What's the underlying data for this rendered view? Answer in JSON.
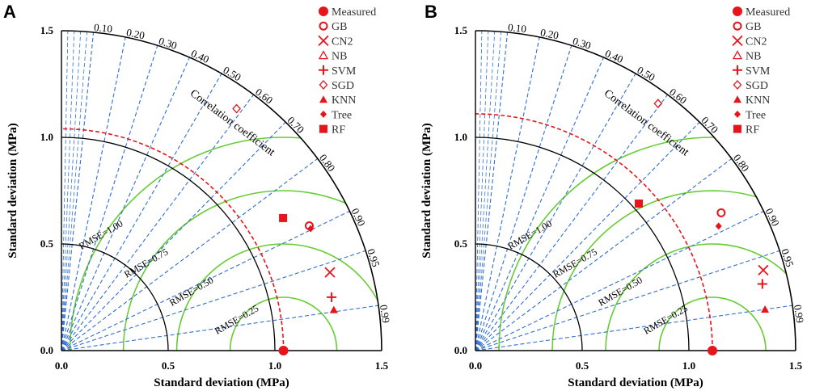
{
  "chart_data": [
    {
      "type": "taylor",
      "panel_label": "A",
      "xlabel": "Standard deviation (MPa)",
      "ylabel": "Standard deviation (MPa)",
      "axis_range": [
        0,
        1.5
      ],
      "axis_ticks": [
        "0.0",
        "0.5",
        "1.0",
        "1.5"
      ],
      "std_arcs": [
        0.5,
        1.0,
        1.5
      ],
      "correlation_title": "Correlation coefficient",
      "correlation_ticks": [
        "0.10",
        "0.20",
        "0.30",
        "0.40",
        "0.50",
        "0.60",
        "0.70",
        "0.80",
        "0.90",
        "0.95",
        "0.99"
      ],
      "rmse_labels": [
        "RMSE=0.25",
        "RMSE=0.50",
        "RMSE=0.75",
        "RMSE=1.00"
      ],
      "reference_std": 1.04,
      "models": [
        {
          "name": "Measured",
          "symbol": "circle-filled",
          "std": 1.04,
          "corr": 1.0
        },
        {
          "name": "GB",
          "symbol": "circle-open",
          "std": 1.3,
          "corr": 0.893
        },
        {
          "name": "CN2",
          "symbol": "x",
          "std": 1.31,
          "corr": 0.96
        },
        {
          "name": "NB",
          "symbol": "triangle-open",
          "std": 1.4,
          "corr": 0.586
        },
        {
          "name": "SVM",
          "symbol": "plus",
          "std": 1.29,
          "corr": 0.981
        },
        {
          "name": "SGD",
          "symbol": "diamond-open",
          "std": 1.4,
          "corr": 0.586
        },
        {
          "name": "KNN",
          "symbol": "triangle-filled",
          "std": 1.29,
          "corr": 0.989
        },
        {
          "name": "Tree",
          "symbol": "diamond-filled",
          "std": 1.3,
          "corr": 0.898
        },
        {
          "name": "RF",
          "symbol": "square-filled",
          "std": 1.21,
          "corr": 0.858
        }
      ]
    },
    {
      "type": "taylor",
      "panel_label": "B",
      "xlabel": "Standard deviation (MPa)",
      "ylabel": "Standard deviation (MPa)",
      "axis_range": [
        0,
        1.5
      ],
      "axis_ticks": [
        "0.0",
        "0.5",
        "1.0",
        "1.5"
      ],
      "std_arcs": [
        0.5,
        1.0,
        1.5
      ],
      "correlation_title": "Correlation coefficient",
      "correlation_ticks": [
        "0.10",
        "0.20",
        "0.30",
        "0.40",
        "0.50",
        "0.60",
        "0.70",
        "0.80",
        "0.90",
        "0.95",
        "0.99"
      ],
      "rmse_labels": [
        "RMSE=0.25",
        "RMSE=0.50",
        "RMSE=0.75",
        "RMSE=1.00"
      ],
      "reference_std": 1.11,
      "models": [
        {
          "name": "Measured",
          "symbol": "circle-filled",
          "std": 1.11,
          "corr": 1.0
        },
        {
          "name": "GB",
          "symbol": "circle-open",
          "std": 1.32,
          "corr": 0.872
        },
        {
          "name": "CN2",
          "symbol": "x",
          "std": 1.4,
          "corr": 0.963
        },
        {
          "name": "NB",
          "symbol": "triangle-open",
          "std": 1.44,
          "corr": 0.594
        },
        {
          "name": "SVM",
          "symbol": "plus",
          "std": 1.38,
          "corr": 0.974
        },
        {
          "name": "SGD",
          "symbol": "diamond-open",
          "std": 1.44,
          "corr": 0.594
        },
        {
          "name": "KNN",
          "symbol": "triangle-filled",
          "std": 1.37,
          "corr": 0.99
        },
        {
          "name": "Tree",
          "symbol": "diamond-filled",
          "std": 1.28,
          "corr": 0.89
        },
        {
          "name": "RF",
          "symbol": "square-filled",
          "std": 1.03,
          "corr": 0.743
        }
      ]
    }
  ],
  "colors": {
    "marker": "#e8141b",
    "corr_lines": "#2f6fd6",
    "rmse_arcs": "#66cc33",
    "ref_arc": "#e8141b",
    "axis": "#000000"
  }
}
